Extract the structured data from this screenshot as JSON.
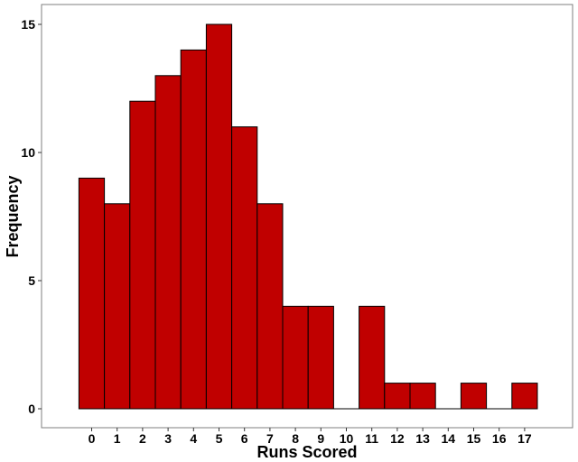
{
  "chart_data": {
    "type": "bar",
    "title": "",
    "xlabel": "Runs Scored",
    "ylabel": "Frequency",
    "categories": [
      "0",
      "1",
      "2",
      "3",
      "4",
      "5",
      "6",
      "7",
      "8",
      "9",
      "10",
      "11",
      "12",
      "13",
      "14",
      "15",
      "16",
      "17"
    ],
    "values": [
      9,
      8,
      12,
      13,
      14,
      15,
      11,
      8,
      4,
      4,
      0,
      4,
      1,
      1,
      0,
      1,
      0,
      1
    ],
    "ylim": [
      0,
      15
    ],
    "yticks": [
      0,
      5,
      10,
      15
    ],
    "grid": false,
    "bar_color": "#C00000",
    "bar_edge_color": "#000000"
  }
}
